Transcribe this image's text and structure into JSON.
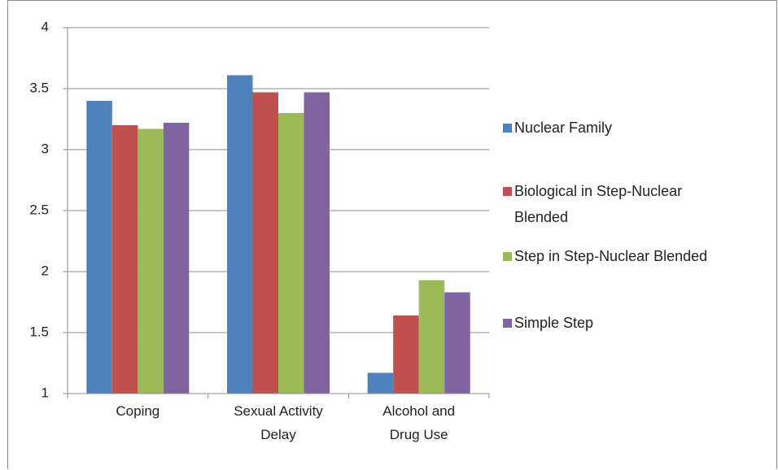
{
  "chart_data": {
    "type": "bar",
    "categories": [
      "Coping",
      "Sexual Activity Delay",
      "Alcohol and Drug Use"
    ],
    "series": [
      {
        "name": "Nuclear Family",
        "color": "#4f81bd",
        "values": [
          3.4,
          3.61,
          1.17
        ]
      },
      {
        "name": "Biological in Step-Nuclear Blended",
        "color": "#c0504d",
        "values": [
          3.2,
          3.47,
          1.64
        ]
      },
      {
        "name": "Step in Step-Nuclear Blended",
        "color": "#9bbb59",
        "values": [
          3.17,
          3.3,
          1.93
        ]
      },
      {
        "name": "Simple Step",
        "color": "#8064a2",
        "values": [
          3.22,
          3.47,
          1.83
        ]
      }
    ],
    "ylim": [
      1,
      4
    ],
    "yticks": [
      1,
      1.5,
      2,
      2.5,
      3,
      3.5,
      4
    ],
    "grid": true,
    "legend": "right"
  }
}
